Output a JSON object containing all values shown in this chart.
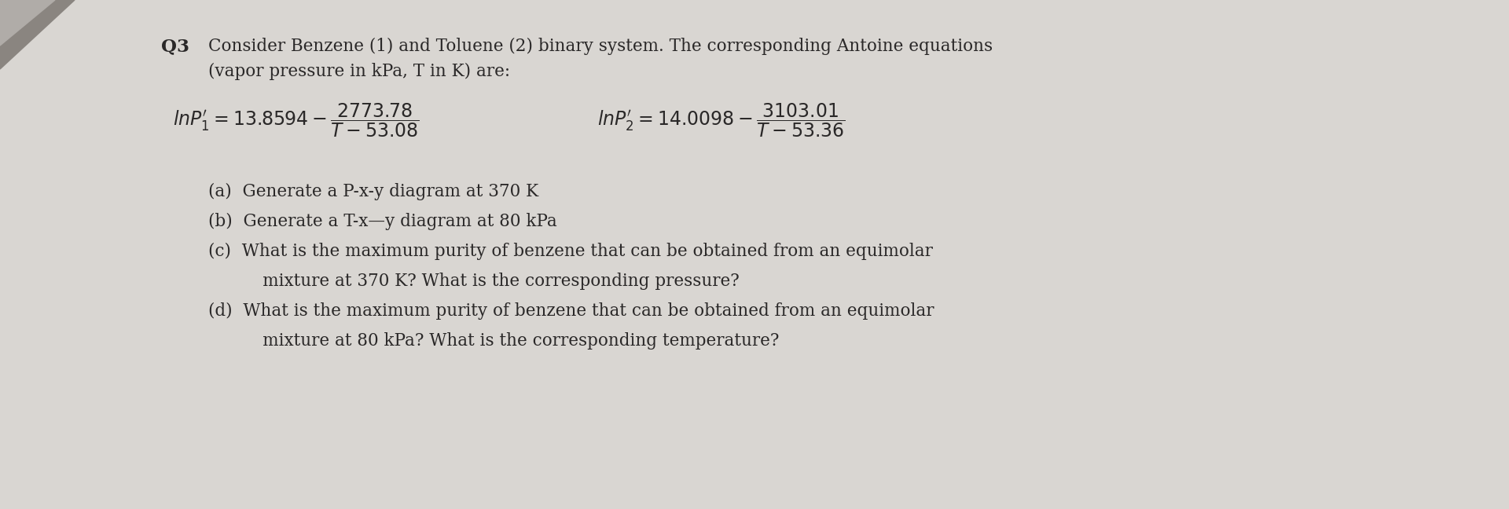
{
  "bg_color": "#c8c5c2",
  "paper_color": "#d9d6d2",
  "text_color": "#2a2828",
  "q_label": "Q3",
  "title_line1": "Consider Benzene (1) and Toluene (2) binary system. The corresponding Antoine equations",
  "title_line2": "(vapor pressure in kPa, T in K) are:",
  "eq1": "$\\mathit{ln}P_1^{\\prime} = 13.8594 - \\dfrac{2773.78}{T-53.08}$",
  "eq2": "$\\mathit{ln}P_2^{\\prime} = 14.0098 - \\dfrac{3103.01}{T-53.36}$",
  "part_a": "(a)  Generate a P-x-y diagram at 370 K",
  "part_b": "(b)  Generate a T-x—y diagram at 80 kPa",
  "part_c1": "(c)  What is the maximum purity of benzene that can be obtained from an equimolar",
  "part_c2": "      mixture at 370 K? What is the corresponding pressure?",
  "part_d1": "(d)  What is the maximum purity of benzene that can be obtained from an equimolar",
  "part_d2": "      mixture at 80 kPa? What is the corresponding temperature?",
  "font_main": 15.5,
  "font_eq": 17,
  "fig_width": 19.2,
  "fig_height": 6.48
}
